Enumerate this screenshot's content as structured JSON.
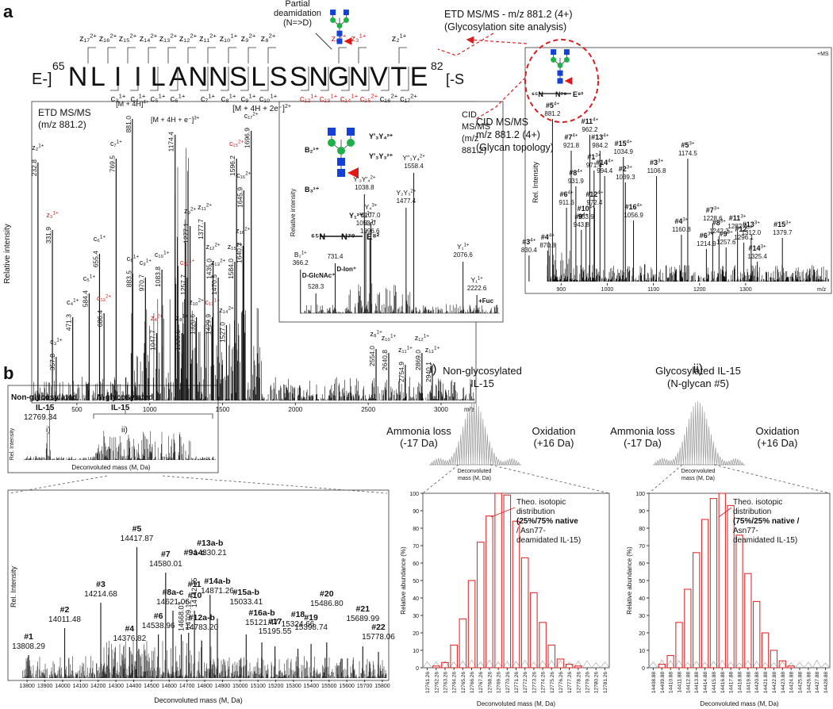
{
  "panel_labels": [
    "a",
    "b"
  ],
  "panel_a": {
    "sequence": {
      "prefix": "E-]",
      "start": "65",
      "residues": [
        "N",
        "L",
        "I",
        "I",
        "L",
        "A",
        "N",
        "N",
        "S",
        "L",
        "S",
        "S",
        "N",
        "G",
        "N",
        "V",
        "T",
        "E"
      ],
      "end": "82",
      "suffix": "[-S",
      "top_ions": [
        {
          "ion": "z₁₇",
          "charge": "2+"
        },
        {
          "ion": "z₁₆",
          "charge": "2+"
        },
        {
          "ion": "z₁₅",
          "charge": "2+"
        },
        {
          "ion": "z₁₄",
          "charge": "2+"
        },
        {
          "ion": "z₁₃",
          "charge": "2+"
        },
        {
          "ion": "z₁₂",
          "charge": "2+"
        },
        {
          "ion": "z₁₁",
          "charge": "2+"
        },
        {
          "ion": "z₁₀",
          "charge": "1+"
        },
        {
          "ion": "z₉",
          "charge": "2+"
        },
        {
          "ion": "z₈",
          "charge": "2+"
        },
        {
          "ion": "z₄",
          "charge": "2+",
          "color": "#d42020"
        },
        {
          "ion": "z₃",
          "charge": "1+",
          "color": "#d42020"
        },
        {
          "ion": "z₂",
          "charge": "1+"
        }
      ],
      "bottom_ions": [
        {
          "ion": "c₃",
          "charge": "1+"
        },
        {
          "ion": "c₄",
          "charge": "1+"
        },
        {
          "ion": "c₅",
          "charge": "1+"
        },
        {
          "ion": "c₆",
          "charge": "1+"
        },
        {
          "ion": "c₇",
          "charge": "1+"
        },
        {
          "ion": "c₈",
          "charge": "1+"
        },
        {
          "ion": "c₉",
          "charge": "1+"
        },
        {
          "ion": "c₁₀",
          "charge": "1+"
        },
        {
          "ion": "c₁₂",
          "charge": "1+",
          "color": "#d42020"
        },
        {
          "ion": "c₁₃",
          "charge": "1+",
          "color": "#d42020"
        },
        {
          "ion": "c₁₄",
          "charge": "1+",
          "color": "#d42020"
        },
        {
          "ion": "c₁₅",
          "charge": "2+",
          "color": "#d42020"
        },
        {
          "ion": "c₁₆",
          "charge": "2+"
        },
        {
          "ion": "c₁₇",
          "charge": "2+"
        }
      ]
    },
    "deamidation_note": [
      "Partial",
      "deamidation",
      "(N=>D)"
    ],
    "etd_callout": [
      "ETD MS/MS - m/z 881.2 (4+)",
      "(Glycosylation site analysis)"
    ],
    "cid_callout": [
      "CID MS/MS",
      "m/z 881.2 (4+)",
      "(Glycan topology)"
    ],
    "etd": {
      "title": [
        "ETD MS/MS",
        "(m/z 881.2)"
      ],
      "y_label": "Relative intensity",
      "x_label": "m/z",
      "xlim": [
        190,
        3240
      ],
      "xticks": [
        500,
        1000,
        1500,
        2000,
        2500,
        3000
      ],
      "peaks": [
        {
          "mass": "232.8",
          "ion": "z₂",
          "charge": "1+"
        },
        {
          "mass": "331.9",
          "ion": "z₃",
          "charge": "1+",
          "color": "#d42020"
        },
        {
          "mass": "357.8",
          "ion": "c₃",
          "charge": "1+"
        },
        {
          "mass": "471.3",
          "ion": "c₄",
          "charge": "1+"
        },
        {
          "mass": "584.4",
          "ion": "c₅",
          "charge": "1+"
        },
        {
          "mass": "655.4",
          "ion": "c₆",
          "charge": "1+"
        },
        {
          "mass": "686.4",
          "ion": "c₁₃",
          "charge": "2+",
          "color": "#d42020"
        },
        {
          "mass": "769.5",
          "ion": "c₇",
          "charge": "1+"
        },
        {
          "mass": "881.0",
          "ion": "[M + 4H]",
          "charge": "4+"
        },
        {
          "mass": "883.5",
          "ion": "c₈",
          "charge": "1+"
        },
        {
          "mass": "970.7",
          "ion": "c₉",
          "charge": "1+"
        },
        {
          "mass": "1047.7",
          "ion": "z₄",
          "charge": "2+",
          "color": "#d42020"
        },
        {
          "mass": "1083.8",
          "ion": "c₁₀",
          "charge": "1+"
        },
        {
          "mass": "1174.4",
          "ion": "[M + 4H + e⁻]",
          "charge": "3+"
        },
        {
          "mass": "1220.6",
          "ion": "z₈",
          "charge": "1+"
        },
        {
          "mass": "1257.7",
          "ion": "c₁₂",
          "charge": "1+",
          "color": "#d42020"
        },
        {
          "mass": "1277.1",
          "ion": "z₉",
          "charge": "2+"
        },
        {
          "mass": "1320.6",
          "ion": "z₁₀",
          "charge": "2+"
        },
        {
          "mass": "1377.7",
          "ion": "z₁₁",
          "charge": "2+"
        },
        {
          "mass": "1429.9",
          "ion": "c₁₃",
          "charge": "1+",
          "color": "#d42020"
        },
        {
          "mass": "1435.0",
          "ion": "z₁₂",
          "charge": "2+"
        },
        {
          "mass": "1470.5",
          "ion": "z₁₃",
          "charge": "2+"
        },
        {
          "mass": "1527.0",
          "ion": "z₁₄",
          "charge": "2+"
        },
        {
          "mass": "1584.0",
          "ion": "z₁₅",
          "charge": "2+"
        },
        {
          "mass": "1596.2",
          "ion": "c₁₅",
          "charge": "2+",
          "color": "#d42020"
        },
        {
          "mass": "1640.3",
          "ion": "z₁₆",
          "charge": "2+"
        },
        {
          "mass": "1645.9",
          "ion": "c₁₆",
          "charge": "2+"
        },
        {
          "mass": "1696.9",
          "ion": "c₁₇",
          "charge": "2+"
        },
        {
          "mass": "2554.0",
          "ion": "z₈",
          "charge": "1+"
        },
        {
          "mass": "2640.8",
          "ion": "z₁₀",
          "charge": "1+"
        },
        {
          "mass": "2754.9",
          "ion": "z₁₁",
          "charge": "1+"
        },
        {
          "mass": "2869.0",
          "ion": "z₁₂",
          "charge": "1+"
        },
        {
          "mass": "2940.1",
          "ion": "z₁₃",
          "charge": "1+"
        }
      ],
      "extra_ion": {
        "ion": "[M + 4H + 2e⁻]",
        "charge": "2+"
      }
    },
    "cid": {
      "title": [
        "CID",
        "MS/MS",
        "(m/z",
        "881.2)"
      ],
      "y_label": "Relative intensity",
      "xlim": [
        143,
        2497
      ],
      "glycan_labels": [
        "B₂¹⁺",
        "B₃¹⁺",
        "Y₁²⁺",
        "Y′₃Y₄²⁺",
        "Y′₃Y₃²⁺"
      ],
      "peptide": [
        "⁶⁵N",
        "N⁷⁹",
        "E⁸²"
      ],
      "peaks": [
        {
          "mass": "366.2",
          "ion": "B₂",
          "charge": "1+",
          "note": "D-GlcNAc⁺"
        },
        {
          "mass": "528.3"
        },
        {
          "mass": "731.4",
          "note": "D-Ion⁺"
        },
        {
          "mass": "1038.8",
          "ion": "Y′₃Y′₄",
          "charge": "2+"
        },
        {
          "mass": "1053.0",
          "ion": "Y₃",
          "charge": "2+"
        },
        {
          "mass": "1096.6",
          "ion": "B₃",
          "charge": "1+"
        },
        {
          "mass": "1107.0",
          "ion": "Y₄",
          "charge": "3+"
        },
        {
          "mass": "1477.4",
          "ion": "Y₂Y₃",
          "charge": "2+"
        },
        {
          "mass": "1558.4",
          "ion": "Y′′₃Y₄",
          "charge": "2+"
        },
        {
          "mass": "2076.6",
          "ion": "Y₁",
          "charge": "1+"
        },
        {
          "mass": "2222.6",
          "ion": "Y₁",
          "charge": "1+",
          "note": "+Fuc"
        }
      ]
    },
    "glyco_ms": {
      "corner": "+MS",
      "y_label": "Rel. Intensity",
      "x_label": "m/z",
      "xlim": [
        822,
        1486
      ],
      "xticks": [
        900,
        1000,
        1100,
        1200,
        1300
      ],
      "peptide": [
        "⁶⁵N",
        "N⁷⁹",
        "E⁸²"
      ],
      "peaks": [
        {
          "mass": "830.4",
          "num": "#3",
          "charge": "4+"
        },
        {
          "mass": "870.8",
          "num": "#4",
          "charge": "4+"
        },
        {
          "mass": "881.2",
          "num": "#5",
          "charge": "4+"
        },
        {
          "mass": "911.6",
          "num": "#6",
          "charge": "4+"
        },
        {
          "mass": "921.8",
          "num": "#7",
          "charge": "4+"
        },
        {
          "mass": "931.9",
          "num": "#8",
          "charge": "4+"
        },
        {
          "mass": "943.8",
          "num": "#9",
          "charge": "4+"
        },
        {
          "mass": "953.9",
          "num": "#10",
          "charge": "4+"
        },
        {
          "mass": "962.2",
          "num": "#11",
          "charge": "4+"
        },
        {
          "mass": "971.4",
          "num": "#1",
          "charge": "3+"
        },
        {
          "mass": "972.4",
          "num": "#12",
          "charge": "4+"
        },
        {
          "mass": "984.2",
          "num": "#13",
          "charge": "4+"
        },
        {
          "mass": "994.4",
          "num": "#14",
          "charge": "4+"
        },
        {
          "mass": "1034.9",
          "num": "#15",
          "charge": "4+"
        },
        {
          "mass": "1039.3",
          "num": "#2",
          "charge": "3+"
        },
        {
          "mass": "1056.9",
          "num": "#16",
          "charge": "4+"
        },
        {
          "mass": "1106.8",
          "num": "#3",
          "charge": "3+"
        },
        {
          "mass": "1160.8",
          "num": "#4",
          "charge": "3+"
        },
        {
          "mass": "1174.5",
          "num": "#5",
          "charge": "3+"
        },
        {
          "mass": "1214.9",
          "num": "#6",
          "charge": "3+"
        },
        {
          "mass": "1228.6",
          "num": "#7",
          "charge": "3+"
        },
        {
          "mass": "1242.3",
          "num": "#8",
          "charge": "3+"
        },
        {
          "mass": "1257.6",
          "num": "#9",
          "charge": "3+"
        },
        {
          "mass": "1282.4",
          "num": "#11",
          "charge": "3+"
        },
        {
          "mass": "1296.1",
          "num": "#12",
          "charge": "3+"
        },
        {
          "mass": "1312.0",
          "num": "#13",
          "charge": "3+"
        },
        {
          "mass": "1325.4",
          "num": "#14",
          "charge": "3+"
        },
        {
          "mass": "1379.7",
          "num": "#15",
          "charge": "3+"
        }
      ]
    }
  },
  "panel_b": {
    "overview": {
      "non_glyco": "Non-glycosylated",
      "il15_a": "IL-15",
      "mass": "12769.34",
      "i": "i)",
      "glyco": [
        "N",
        "-glycosylated"
      ],
      "il15_b": "IL-15",
      "ii": "ii)",
      "y_label": "Rel. Intensity",
      "x_label": "Deconvoluted mass (M, Da)"
    },
    "zoom": {
      "y_label": "Rel. Intensity",
      "x_label": "Deconvoluted mass (M, Da)",
      "xlim": [
        13692,
        15836
      ],
      "xticks": [
        13800,
        13900,
        14000,
        14100,
        14200,
        14300,
        14400,
        14500,
        14600,
        14700,
        14800,
        14900,
        15000,
        15100,
        15200,
        15300,
        15400,
        15500,
        15600,
        15700,
        15800
      ],
      "peaks": [
        {
          "label": "#1",
          "mass": "13808.29",
          "color": "#d42020"
        },
        {
          "label": "#2",
          "mass": "14011.48",
          "color": "#d42020"
        },
        {
          "label": "#3",
          "mass": "14214.68",
          "color": "#d42020"
        },
        {
          "label": "#4",
          "mass": "14376.82",
          "color": "#d42020"
        },
        {
          "label": "#5",
          "mass": "14417.87",
          "color": "#d42020"
        },
        {
          "label": "#6",
          "mass": "14538.96",
          "color": "#d42020"
        },
        {
          "label": "#7",
          "mass": "14580.01",
          "color": "#d42020"
        },
        {
          "label": "#8a-c",
          "mass": "14621.06",
          "color": "#d42020"
        },
        {
          "mass": "14668.07"
        },
        {
          "mass": "14709.12"
        },
        {
          "label": "#9a-c",
          "color": "#d42020"
        },
        {
          "label": "#11",
          "mass": "14742.15",
          "color": "#d42020"
        },
        {
          "label": "#10",
          "color": "#d42020"
        },
        {
          "label": "#12a-b",
          "mass": "14783.20",
          "color": "#d42020"
        },
        {
          "label": "#13a-b",
          "mass": "14830.21",
          "color": "#d42020"
        },
        {
          "label": "#14a-b",
          "mass": "14871.26",
          "color": "#d42020"
        },
        {
          "label": "#15a-b",
          "mass": "15033.41",
          "color": "#d42020"
        },
        {
          "label": "#16a-b",
          "mass": "15121.47",
          "color": "#d42020"
        },
        {
          "label": "#17",
          "mass": "15195.55"
        },
        {
          "label": "#18",
          "mass": "15324.66"
        },
        {
          "label": "#19",
          "mass": "15398.74"
        },
        {
          "label": "#20",
          "mass": "15486.80"
        },
        {
          "label": "#21",
          "mass": "15689.99"
        },
        {
          "label": "#22",
          "mass": "15778.06"
        }
      ]
    }
  },
  "chart_data": [
    {
      "type": "bar",
      "panel": "i)",
      "title": [
        "Non-glycosylated",
        "IL-15"
      ],
      "inset": {
        "left": [
          "Ammonia loss",
          "(-17 Da)"
        ],
        "right": [
          "Oxidation",
          "(+16 Da)"
        ],
        "x_label": [
          "Deconvoluted",
          "mass (M, Da)"
        ]
      },
      "annotation": [
        "Theo. isotopic",
        "distribution",
        "(25%/75% native",
        "/ Asn77-",
        "deamidated IL-15)"
      ],
      "y_label": "Relative abundance (%)",
      "x_label": "Deconvoluted mass (M, Da)",
      "categories": [
        "12761.26",
        "12762.26",
        "12763.26",
        "12764.26",
        "12765.26",
        "12766.26",
        "12767.26",
        "12768.26",
        "12769.26",
        "12770.26",
        "12771.26",
        "12772.26",
        "12773.26",
        "12774.26",
        "12775.26",
        "12776.26",
        "12777.26",
        "12778.26",
        "12779.26",
        "12780.26",
        "12781.26"
      ],
      "values": [
        0,
        1,
        3,
        13,
        28,
        50,
        72,
        87,
        100,
        99,
        84,
        63,
        43,
        26,
        13,
        5,
        2,
        1,
        0,
        0,
        0
      ],
      "color": "#e03030",
      "ylim": [
        0,
        100
      ],
      "yticks": [
        0,
        10,
        20,
        30,
        40,
        50,
        60,
        70,
        80,
        90,
        100
      ]
    },
    {
      "type": "bar",
      "panel": "ii)",
      "title": [
        "Glycosylated IL-15",
        "(N-glycan #5)"
      ],
      "inset": {
        "left": [
          "Ammonia loss",
          "(-17 Da)"
        ],
        "right": [
          "Oxidation",
          "(+16 Da)"
        ],
        "x_label": [
          "Deconvoluted",
          "mass (M, Da)"
        ]
      },
      "annotation": [
        "Theo. isotopic",
        "distribution",
        "(75%/25% native /",
        "Asn77-",
        "deamidated IL-15)"
      ],
      "y_label": "Relative abundance (%)",
      "x_label": "Deconvoluted mass (M, Da)",
      "categories": [
        "14408.88",
        "14409.88",
        "14410.88",
        "14411.88",
        "14412.88",
        "14413.88",
        "14414.88",
        "14415.88",
        "14416.88",
        "14417.88",
        "14418.88",
        "14419.88",
        "14420.88",
        "14421.88",
        "14422.88",
        "14423.88",
        "14424.88",
        "14425.88",
        "14426.88",
        "14427.88",
        "14428.88"
      ],
      "values": [
        0,
        2,
        7,
        26,
        45,
        66,
        85,
        97,
        100,
        93,
        76,
        54,
        38,
        20,
        10,
        4,
        1,
        0,
        0,
        0,
        0
      ],
      "color": "#e03030",
      "ylim": [
        0,
        100
      ],
      "yticks": [
        0,
        10,
        20,
        30,
        40,
        50,
        60,
        70,
        80,
        90,
        100
      ]
    }
  ]
}
